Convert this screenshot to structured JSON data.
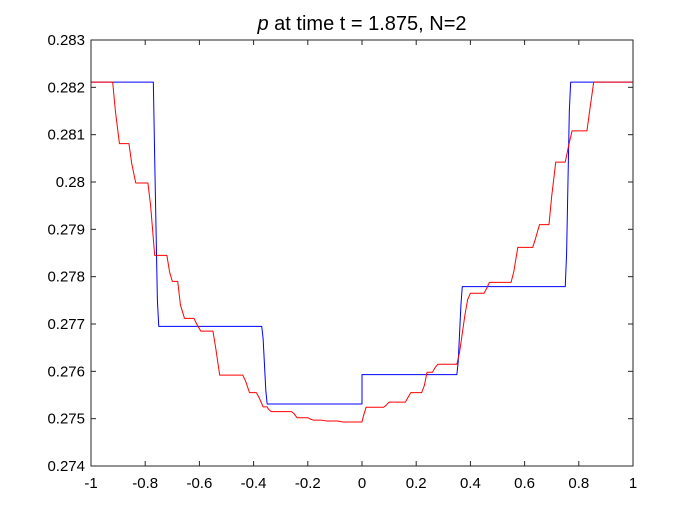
{
  "chart_data": {
    "type": "line",
    "title": {
      "symbol": "p",
      "rest": " at time t = 1.875, N=2"
    },
    "xlabel": "",
    "ylabel": "",
    "xlim": [
      -1,
      1
    ],
    "ylim": [
      0.274,
      0.283
    ],
    "x_ticks": [
      -1,
      -0.8,
      -0.6,
      -0.4,
      -0.2,
      0,
      0.2,
      0.4,
      0.6,
      0.8,
      1
    ],
    "x_tick_labels": [
      "-1",
      "-0.8",
      "-0.6",
      "-0.4",
      "-0.2",
      "0",
      "0.2",
      "0.4",
      "0.6",
      "0.8",
      "1"
    ],
    "y_ticks": [
      0.274,
      0.275,
      0.276,
      0.277,
      0.278,
      0.279,
      0.28,
      0.281,
      0.282,
      0.283
    ],
    "y_tick_labels": [
      "0.274",
      "0.275",
      "0.276",
      "0.277",
      "0.278",
      "0.279",
      "0.28",
      "0.281",
      "0.282",
      "0.283"
    ],
    "grid": false,
    "legend": "none",
    "series": [
      {
        "color": "#0000ff",
        "x": [
          -1,
          -0.77,
          -0.765,
          -0.755,
          -0.75,
          -0.37,
          -0.365,
          -0.355,
          -0.35,
          0,
          0,
          0.35,
          0.355,
          0.365,
          0.37,
          0.75,
          0.755,
          0.765,
          0.77,
          1
        ],
        "y": [
          0.28211,
          0.28211,
          0.2805,
          0.2775,
          0.27695,
          0.27695,
          0.2767,
          0.2756,
          0.27531,
          0.27531,
          0.27593,
          0.27593,
          0.2762,
          0.2774,
          0.27779,
          0.27779,
          0.2785,
          0.2815,
          0.28211,
          0.28211
        ]
      },
      {
        "color": "#ff0000",
        "x": [
          -1,
          -0.92,
          -0.91,
          -0.895,
          -0.86,
          -0.85,
          -0.835,
          -0.79,
          -0.78,
          -0.765,
          -0.72,
          -0.71,
          -0.7,
          -0.68,
          -0.67,
          -0.655,
          -0.62,
          -0.61,
          -0.595,
          -0.55,
          -0.54,
          -0.525,
          -0.44,
          -0.43,
          -0.415,
          -0.39,
          -0.38,
          -0.365,
          -0.35,
          -0.345,
          -0.335,
          -0.26,
          -0.25,
          -0.24,
          -0.2,
          -0.19,
          -0.18,
          -0.15,
          -0.14,
          -0.13,
          -0.09,
          -0.08,
          -0.07,
          0,
          0.005,
          0.015,
          0.08,
          0.09,
          0.1,
          0.16,
          0.17,
          0.18,
          0.22,
          0.23,
          0.24,
          0.26,
          0.27,
          0.28,
          0.35,
          0.36,
          0.37,
          0.38,
          0.39,
          0.4,
          0.45,
          0.46,
          0.47,
          0.55,
          0.56,
          0.575,
          0.63,
          0.64,
          0.655,
          0.69,
          0.7,
          0.715,
          0.75,
          0.76,
          0.775,
          0.83,
          0.84,
          0.855,
          0.9,
          0.91,
          1
        ],
        "y": [
          0.28211,
          0.28211,
          0.2815,
          0.28081,
          0.28081,
          0.2804,
          0.27998,
          0.27998,
          0.2795,
          0.27845,
          0.27845,
          0.2781,
          0.2779,
          0.2779,
          0.2774,
          0.27712,
          0.27712,
          0.277,
          0.27685,
          0.27685,
          0.2765,
          0.27592,
          0.27592,
          0.2758,
          0.27555,
          0.27555,
          0.27545,
          0.27525,
          0.27525,
          0.2752,
          0.27515,
          0.27515,
          0.2751,
          0.27502,
          0.27502,
          0.27499,
          0.27497,
          0.27497,
          0.27496,
          0.27495,
          0.27495,
          0.27494,
          0.27493,
          0.27493,
          0.27505,
          0.27524,
          0.27524,
          0.27529,
          0.27535,
          0.27535,
          0.27545,
          0.27555,
          0.27555,
          0.2757,
          0.27598,
          0.27598,
          0.27608,
          0.27615,
          0.27615,
          0.2764,
          0.2768,
          0.2772,
          0.27752,
          0.27765,
          0.27765,
          0.27775,
          0.27788,
          0.27788,
          0.2781,
          0.27862,
          0.27862,
          0.2788,
          0.2791,
          0.2791,
          0.2797,
          0.28042,
          0.28042,
          0.2807,
          0.28108,
          0.28108,
          0.2815,
          0.28211,
          0.28211,
          0.28211,
          0.28211
        ]
      }
    ]
  }
}
